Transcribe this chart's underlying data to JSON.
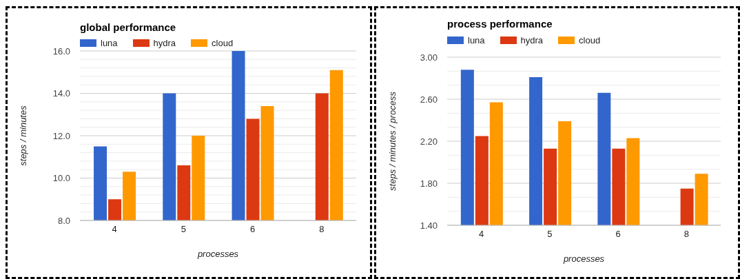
{
  "chart_data": [
    {
      "type": "bar",
      "title": "global performance",
      "xlabel": "processes",
      "ylabel": "steps / minutes",
      "categories": [
        "4",
        "5",
        "6",
        "8"
      ],
      "series": [
        {
          "name": "luna",
          "color": "#3366cc",
          "values": [
            11.5,
            14.0,
            16.0,
            null
          ]
        },
        {
          "name": "hydra",
          "color": "#dc3912",
          "values": [
            9.0,
            10.6,
            12.8,
            14.0
          ]
        },
        {
          "name": "cloud",
          "color": "#ff9900",
          "values": [
            10.3,
            12.0,
            13.4,
            15.1
          ]
        }
      ],
      "ylim": [
        8,
        16
      ],
      "yticks": [
        {
          "value": 8,
          "label": "8.0"
        },
        {
          "value": 8.4,
          "label": null
        },
        {
          "value": 8.8,
          "label": null
        },
        {
          "value": 9.2,
          "label": null
        },
        {
          "value": 9.6,
          "label": null
        },
        {
          "value": 10,
          "label": "10.0"
        },
        {
          "value": 10.4,
          "label": null
        },
        {
          "value": 10.8,
          "label": null
        },
        {
          "value": 11.2,
          "label": null
        },
        {
          "value": 11.6,
          "label": null
        },
        {
          "value": 12,
          "label": "12.0"
        },
        {
          "value": 12.4,
          "label": null
        },
        {
          "value": 12.8,
          "label": null
        },
        {
          "value": 13.2,
          "label": null
        },
        {
          "value": 13.6,
          "label": null
        },
        {
          "value": 14,
          "label": "14.0"
        },
        {
          "value": 14.4,
          "label": null
        },
        {
          "value": 14.8,
          "label": null
        },
        {
          "value": 15.2,
          "label": null
        },
        {
          "value": 15.6,
          "label": null
        },
        {
          "value": 16,
          "label": "16.0"
        }
      ],
      "grid": "y",
      "legend": "top left"
    },
    {
      "type": "bar",
      "title": "process performance",
      "xlabel": "processes",
      "ylabel": "steps / minutes / process",
      "categories": [
        "4",
        "5",
        "6",
        "8"
      ],
      "series": [
        {
          "name": "luna",
          "color": "#3366cc",
          "values": [
            2.88,
            2.81,
            2.66,
            null
          ]
        },
        {
          "name": "hydra",
          "color": "#dc3912",
          "values": [
            2.25,
            2.13,
            2.13,
            1.75
          ]
        },
        {
          "name": "cloud",
          "color": "#ff9900",
          "values": [
            2.57,
            2.39,
            2.23,
            1.89
          ]
        }
      ],
      "ylim": [
        1.4,
        3.0
      ],
      "yticks": [
        {
          "value": 1.4,
          "label": "1.40"
        },
        {
          "value": 1.5333,
          "label": null
        },
        {
          "value": 1.6667,
          "label": null
        },
        {
          "value": 1.8,
          "label": "1.80"
        },
        {
          "value": 1.9333,
          "label": null
        },
        {
          "value": 2.0667,
          "label": null
        },
        {
          "value": 2.2,
          "label": "2.20"
        },
        {
          "value": 2.3333,
          "label": null
        },
        {
          "value": 2.4667,
          "label": null
        },
        {
          "value": 2.6,
          "label": "2.60"
        },
        {
          "value": 2.7333,
          "label": null
        },
        {
          "value": 2.8667,
          "label": null
        },
        {
          "value": 3.0,
          "label": "3.00"
        }
      ],
      "grid": "y",
      "legend": "top left"
    }
  ]
}
